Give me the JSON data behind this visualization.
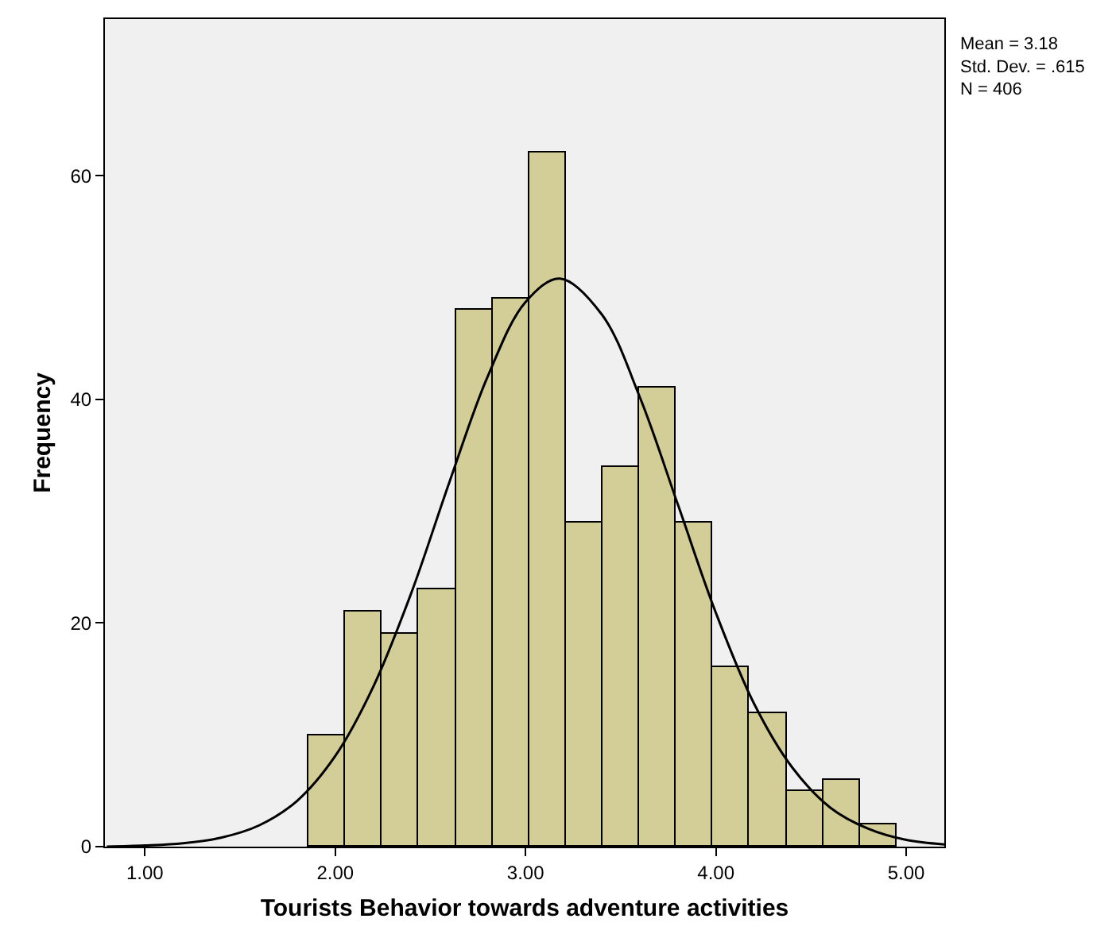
{
  "chart_data": {
    "type": "histogram",
    "xlabel": "Tourists Behavior towards adventure activities",
    "ylabel": "Frequency",
    "bins": [
      1.86,
      2.053,
      2.246,
      2.439,
      2.632,
      2.825,
      3.018,
      3.211,
      3.404,
      3.597,
      3.79,
      3.983,
      4.176,
      4.369,
      4.562,
      4.755,
      4.948
    ],
    "values": [
      10,
      21,
      19,
      23,
      48,
      49,
      62,
      29,
      34,
      41,
      29,
      16,
      12,
      5,
      6,
      2
    ],
    "color": "#d3ce97",
    "series": [
      {
        "type": "line",
        "color": "#000000",
        "x": [
          0.8,
          1.0,
          1.2,
          1.4,
          1.6,
          1.8,
          2.0,
          2.2,
          2.4,
          2.6,
          2.8,
          3.0,
          3.18,
          3.4,
          3.6,
          3.8,
          4.0,
          4.2,
          4.4,
          4.6,
          4.8,
          5.0,
          5.2
        ],
        "values": [
          0.0,
          0.1,
          0.3,
          0.8,
          1.9,
          4.1,
          8.1,
          14.3,
          22.7,
          32.6,
          42.0,
          48.7,
          50.8,
          47.6,
          40.2,
          30.6,
          20.9,
          12.8,
          7.1,
          3.5,
          1.6,
          0.6,
          0.2
        ]
      }
    ],
    "xlim": [
      0.79,
      5.2
    ],
    "xticks": [
      {
        "value": 1,
        "label": "1.00"
      },
      {
        "value": 2,
        "label": "2.00"
      },
      {
        "value": 3,
        "label": "3.00"
      },
      {
        "value": 4,
        "label": "4.00"
      },
      {
        "value": 5,
        "label": "5.00"
      }
    ],
    "ylim": [
      0,
      74
    ],
    "yticks": [
      0,
      20,
      40,
      60
    ],
    "grid": false,
    "annotations": [
      "Mean = 3.18",
      "Std. Dev. = .615",
      "N = 406"
    ]
  }
}
